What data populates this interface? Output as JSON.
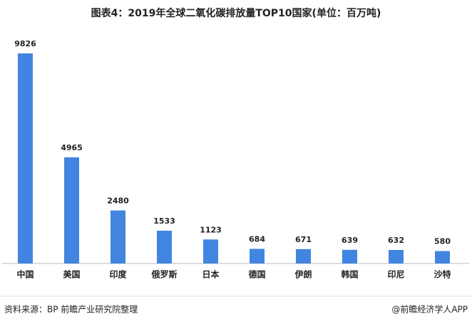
{
  "chart_data": {
    "type": "bar",
    "title": "图表4：2019年全球二氧化碳排放量TOP10国家(单位：百万吨)",
    "categories": [
      "中国",
      "美国",
      "印度",
      "俄罗斯",
      "日本",
      "德国",
      "伊朗",
      "韩国",
      "印尼",
      "沙特"
    ],
    "values": [
      9826,
      4965,
      2480,
      1533,
      1123,
      684,
      671,
      639,
      632,
      580
    ],
    "color": "#4285e0"
  },
  "footer": {
    "source": "资料来源：BP 前瞻产业研究院整理",
    "brand": "@前瞻经济学人APP"
  }
}
